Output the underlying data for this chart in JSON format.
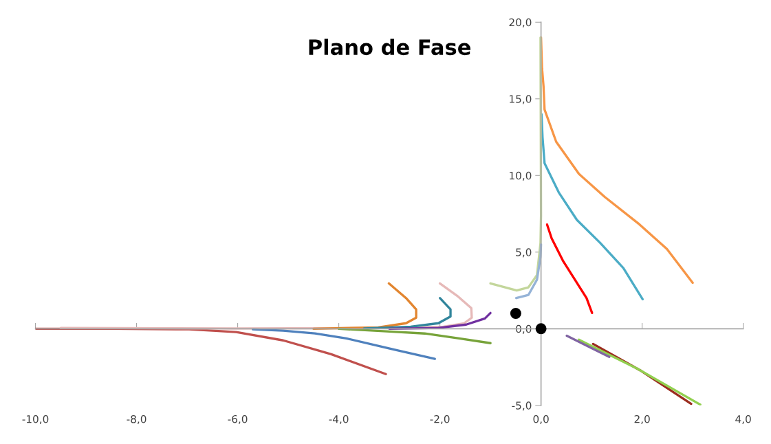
{
  "chart_data": {
    "type": "line",
    "title": "Plano de Fase",
    "xlim": [
      -10,
      4
    ],
    "ylim": [
      -5,
      20
    ],
    "xticks": [
      {
        "value": -10,
        "label": "-10,0"
      },
      {
        "value": -8,
        "label": "-8,0"
      },
      {
        "value": -6,
        "label": "-6,0"
      },
      {
        "value": -4,
        "label": "-4,0"
      },
      {
        "value": -2,
        "label": "-2,0"
      },
      {
        "value": 0,
        "label": "0,0"
      },
      {
        "value": 2,
        "label": "2,0"
      },
      {
        "value": 4,
        "label": "4,0"
      }
    ],
    "yticks": [
      {
        "value": -5,
        "label": "-5,0"
      },
      {
        "value": 0,
        "label": "0,0"
      },
      {
        "value": 5,
        "label": "5,0"
      },
      {
        "value": 10,
        "label": "10,0"
      },
      {
        "value": 15,
        "label": "15,0"
      },
      {
        "value": 20,
        "label": "20,0"
      }
    ],
    "legend": false,
    "marker": "none",
    "line_style": "solid",
    "series": [
      {
        "color": "#f79646",
        "x": [
          0.0,
          0.02,
          0.05,
          0.07,
          0.3,
          0.75,
          1.26,
          1.95,
          2.49,
          3.0
        ],
        "values": [
          19.0,
          17.0,
          15.8,
          14.3,
          12.2,
          10.1,
          8.6,
          6.8,
          5.2,
          3.0
        ]
      },
      {
        "color": "#4bacc6",
        "x": [
          0.01,
          0.03,
          0.07,
          0.35,
          0.71,
          1.17,
          1.63,
          2.01
        ],
        "values": [
          14.0,
          12.5,
          10.8,
          8.9,
          7.1,
          5.6,
          3.95,
          1.93
        ]
      },
      {
        "color": "#ff0000",
        "x": [
          0.12,
          0.21,
          0.44,
          0.67,
          0.9,
          1.01
        ],
        "values": [
          6.8,
          5.9,
          4.4,
          3.2,
          2.0,
          1.03
        ]
      },
      {
        "color": "#c3d69b",
        "x": [
          -1.0,
          -0.48,
          -0.25,
          -0.08,
          -0.01,
          0.0,
          -0.01
        ],
        "values": [
          2.96,
          2.5,
          2.7,
          3.5,
          5.6,
          7.4,
          19.0
        ]
      },
      {
        "color": "#95b3d7",
        "x": [
          -0.49,
          -0.25,
          -0.08,
          -0.01,
          0.0
        ],
        "values": [
          2.0,
          2.2,
          3.2,
          4.7,
          5.5
        ]
      },
      {
        "color": "#c0504d",
        "x": [
          -10.0,
          -8.5,
          -6.96,
          -6.03,
          -5.1,
          -4.15,
          -3.07
        ],
        "values": [
          0.0,
          0.0,
          -0.04,
          -0.22,
          -0.76,
          -1.66,
          -2.96
        ]
      },
      {
        "color": "#e6b9b8",
        "x": [
          -9.5,
          -6.0,
          -3.0,
          -1.93,
          -1.52,
          -1.37,
          -1.38,
          -1.66,
          -2.0
        ],
        "values": [
          0.05,
          0.02,
          0.05,
          0.13,
          0.36,
          0.72,
          1.35,
          2.15,
          2.96
        ]
      },
      {
        "color": "#4f81bd",
        "x": [
          -5.7,
          -5.1,
          -4.47,
          -3.85,
          -2.92,
          -2.1
        ],
        "values": [
          -0.04,
          -0.13,
          -0.31,
          -0.63,
          -1.35,
          -1.97
        ]
      },
      {
        "color": "#e2852f",
        "x": [
          -4.5,
          -3.22,
          -2.67,
          -2.47,
          -2.47,
          -2.67,
          -3.01
        ],
        "values": [
          0.0,
          0.09,
          0.36,
          0.72,
          1.26,
          2.0,
          2.96
        ]
      },
      {
        "color": "#31859c",
        "x": [
          -3.5,
          -2.58,
          -2.03,
          -1.79,
          -1.79,
          -2.0
        ],
        "values": [
          0.02,
          0.13,
          0.36,
          0.8,
          1.26,
          2.0
        ]
      },
      {
        "color": "#7030a0",
        "x": [
          -3.0,
          -2.03,
          -1.48,
          -1.11,
          -1.0
        ],
        "values": [
          0.0,
          0.05,
          0.27,
          0.67,
          1.03
        ]
      },
      {
        "color": "#77a33a",
        "x": [
          -4.0,
          -2.99,
          -2.3,
          -1.62,
          -1.0
        ],
        "values": [
          0.0,
          -0.18,
          -0.31,
          -0.63,
          -0.94
        ]
      },
      {
        "color": "#9b2d1f",
        "x": [
          1.03,
          1.99,
          2.97
        ],
        "values": [
          -0.99,
          -2.77,
          -4.9
        ]
      },
      {
        "color": "#92d050",
        "x": [
          0.75,
          1.9,
          3.15
        ],
        "values": [
          -0.72,
          -2.6,
          -4.95
        ]
      },
      {
        "color": "#8064a2",
        "x": [
          0.51,
          1.35
        ],
        "values": [
          -0.46,
          -1.84
        ]
      },
      {
        "type": "scatter",
        "marker": "circle",
        "color": "#000000",
        "x": [
          -0.5,
          0.0
        ],
        "values": [
          1.0,
          0.0
        ]
      }
    ]
  }
}
